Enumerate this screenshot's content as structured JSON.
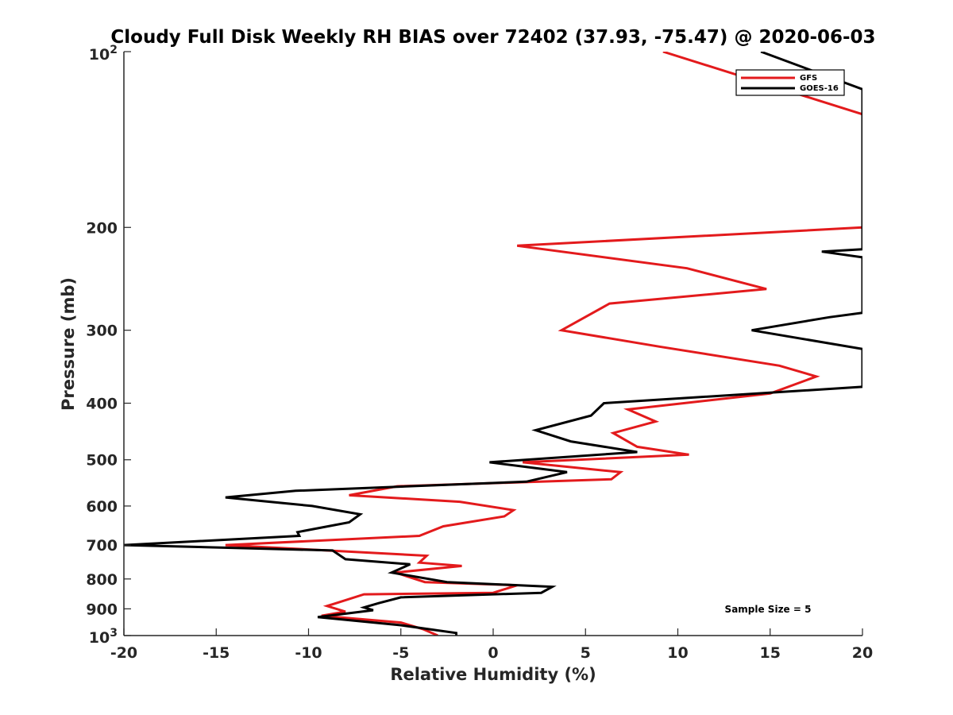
{
  "chart_data": {
    "type": "line",
    "orientation": "vertical-profile",
    "title": "Cloudy Full Disk Weekly RH BIAS over 72402 (37.93, -75.47) @ 2020-06-03",
    "xlabel": "Relative Humidity (%)",
    "ylabel": "Pressure (mb)",
    "xlim": [
      -20,
      20
    ],
    "ylim": [
      100,
      1000
    ],
    "yscale": "log",
    "yreversed": true,
    "grid": false,
    "legend_position": "top-right",
    "x_ticks": [
      -20,
      -15,
      -10,
      -5,
      0,
      5,
      10,
      15,
      20
    ],
    "x_tick_labels": [
      "-20",
      "-15",
      "-10",
      "-5",
      "0",
      "5",
      "10",
      "15",
      "20"
    ],
    "y_ticks": [
      200,
      300,
      400,
      500,
      600,
      700,
      800,
      900
    ],
    "y_tick_labels": [
      "200",
      "300",
      "400",
      "500",
      "600",
      "700",
      "800",
      "900"
    ],
    "y_tick_top": {
      "base": "10",
      "exp": "2"
    },
    "y_tick_bottom": {
      "base": "10",
      "exp": "3"
    },
    "annotation": "Sample Size = 5",
    "series": [
      {
        "name": "GFS",
        "color": "#e31a1c",
        "points": [
          [
            -3.0,
            1000
          ],
          [
            -3.8,
            975
          ],
          [
            -5.0,
            950
          ],
          [
            -9.3,
            925
          ],
          [
            -8.0,
            910
          ],
          [
            -9.0,
            890
          ],
          [
            -8.5,
            880
          ],
          [
            -7.0,
            850
          ],
          [
            0.0,
            845
          ],
          [
            1.3,
            820
          ],
          [
            -3.7,
            810
          ],
          [
            -5.3,
            780
          ],
          [
            -1.7,
            760
          ],
          [
            -4.0,
            750
          ],
          [
            -3.6,
            730
          ],
          [
            -14.5,
            700
          ],
          [
            -4.0,
            675
          ],
          [
            -2.7,
            650
          ],
          [
            0.6,
            625
          ],
          [
            1.1,
            610
          ],
          [
            -1.8,
            590
          ],
          [
            -7.8,
            575
          ],
          [
            -5.2,
            555
          ],
          [
            6.4,
            540
          ],
          [
            6.9,
            525
          ],
          [
            1.6,
            505
          ],
          [
            10.6,
            490
          ],
          [
            7.8,
            475
          ],
          [
            6.5,
            450
          ],
          [
            8.8,
            430
          ],
          [
            7.3,
            410
          ],
          [
            15.0,
            385
          ],
          [
            17.5,
            360
          ],
          [
            15.5,
            345
          ],
          [
            9.0,
            320
          ],
          [
            3.7,
            300
          ],
          [
            6.3,
            270
          ],
          [
            14.8,
            255
          ],
          [
            10.5,
            235
          ],
          [
            1.3,
            215
          ],
          [
            20.0,
            200
          ],
          [
            20.0,
            128
          ],
          [
            9.2,
            100
          ]
        ]
      },
      {
        "name": "GOES-16",
        "color": "#000000",
        "points": [
          [
            -2.0,
            1000
          ],
          [
            -2.0,
            990
          ],
          [
            -5.0,
            960
          ],
          [
            -9.5,
            930
          ],
          [
            -6.5,
            905
          ],
          [
            -7.0,
            895
          ],
          [
            -6.2,
            880
          ],
          [
            -5.0,
            860
          ],
          [
            2.6,
            845
          ],
          [
            3.2,
            825
          ],
          [
            -2.5,
            810
          ],
          [
            -5.5,
            780
          ],
          [
            -4.5,
            755
          ],
          [
            -8.0,
            740
          ],
          [
            -8.7,
            715
          ],
          [
            -20.0,
            700
          ],
          [
            -10.5,
            675
          ],
          [
            -10.6,
            665
          ],
          [
            -7.8,
            640
          ],
          [
            -7.2,
            620
          ],
          [
            -9.8,
            600
          ],
          [
            -14.5,
            580
          ],
          [
            -10.7,
            565
          ],
          [
            1.8,
            545
          ],
          [
            4.0,
            525
          ],
          [
            -0.2,
            505
          ],
          [
            7.8,
            485
          ],
          [
            4.2,
            465
          ],
          [
            2.3,
            445
          ],
          [
            5.3,
            420
          ],
          [
            6.0,
            400
          ],
          [
            20.0,
            375
          ],
          [
            20.0,
            323
          ],
          [
            14.0,
            300
          ],
          [
            18.2,
            285
          ],
          [
            20.0,
            280
          ],
          [
            20.0,
            225
          ],
          [
            17.8,
            220
          ],
          [
            20.0,
            218
          ],
          [
            20.0,
            116
          ],
          [
            14.5,
            100
          ]
        ]
      }
    ]
  }
}
